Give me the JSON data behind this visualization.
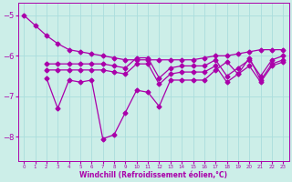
{
  "background_color": "#cceee8",
  "grid_color": "#aadddd",
  "line_color": "#aa00aa",
  "xlabel": "Windchill (Refroidissement éolien,°C)",
  "xlim": [
    -0.5,
    23.5
  ],
  "ylim": [
    -8.6,
    -4.7
  ],
  "yticks": [
    -8,
    -7,
    -6,
    -5
  ],
  "xticks": [
    0,
    1,
    2,
    3,
    4,
    5,
    6,
    7,
    8,
    9,
    10,
    11,
    12,
    13,
    14,
    15,
    16,
    17,
    18,
    19,
    20,
    21,
    22,
    23
  ],
  "series1": {
    "x": [
      0,
      1,
      2,
      3,
      4,
      5,
      6,
      7,
      8,
      9,
      10,
      11,
      12,
      13,
      14,
      15,
      16,
      17,
      18,
      19,
      20,
      21,
      22,
      23
    ],
    "y": [
      -5.0,
      -5.25,
      -5.5,
      -5.7,
      -5.85,
      -5.9,
      -5.95,
      -6.0,
      -6.05,
      -6.1,
      -6.1,
      -6.1,
      -6.1,
      -6.1,
      -6.1,
      -6.1,
      -6.05,
      -6.0,
      -6.0,
      -5.95,
      -5.9,
      -5.85,
      -5.85,
      -5.85
    ]
  },
  "series2": {
    "x": [
      2,
      3,
      4,
      5,
      6,
      7,
      8,
      9,
      10,
      11,
      12,
      13,
      14,
      15,
      16,
      17,
      18,
      19,
      20,
      21,
      22,
      23
    ],
    "y": [
      -6.2,
      -6.2,
      -6.2,
      -6.2,
      -6.2,
      -6.2,
      -6.25,
      -6.3,
      -6.05,
      -6.05,
      -6.55,
      -6.3,
      -6.25,
      -6.25,
      -6.25,
      -6.1,
      -6.5,
      -6.3,
      -6.1,
      -6.5,
      -6.1,
      -6.0
    ]
  },
  "series3": {
    "x": [
      2,
      3,
      4,
      5,
      6,
      7,
      8,
      9,
      10,
      11,
      12,
      13,
      14,
      15,
      16,
      17,
      18,
      19,
      20,
      21,
      22,
      23
    ],
    "y": [
      -6.35,
      -6.35,
      -6.35,
      -6.35,
      -6.35,
      -6.35,
      -6.4,
      -6.45,
      -6.2,
      -6.2,
      -6.7,
      -6.45,
      -6.4,
      -6.4,
      -6.4,
      -6.25,
      -6.65,
      -6.45,
      -6.25,
      -6.65,
      -6.25,
      -6.15
    ]
  },
  "series4": {
    "x": [
      2,
      3,
      4,
      5,
      6,
      7,
      8,
      9,
      10,
      11,
      12,
      13,
      14,
      15,
      16,
      17,
      18,
      19,
      20,
      21,
      22,
      23
    ],
    "y": [
      -6.55,
      -7.3,
      -6.6,
      -6.65,
      -6.6,
      -8.05,
      -7.95,
      -7.4,
      -6.85,
      -6.9,
      -7.25,
      -6.6,
      -6.6,
      -6.6,
      -6.6,
      -6.35,
      -6.15,
      -6.45,
      -6.05,
      -6.6,
      -6.2,
      -6.1
    ]
  }
}
